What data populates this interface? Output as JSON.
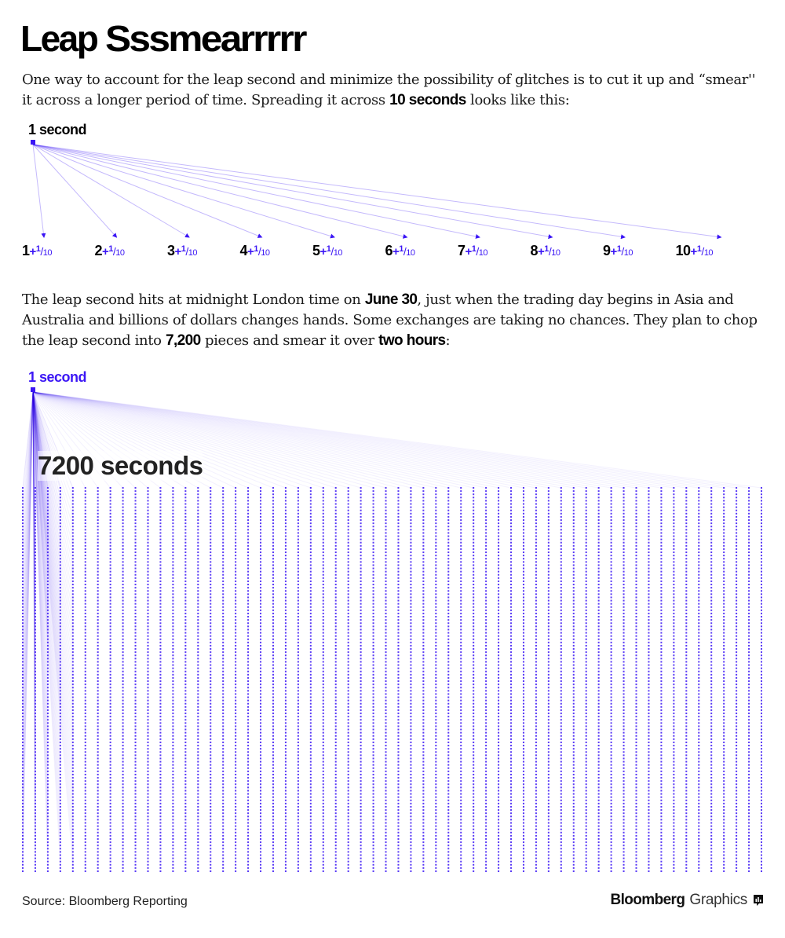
{
  "title": {
    "lead": "Leap ",
    "smear": "Sssmearrrrr"
  },
  "para1": {
    "t1": "One way to account for the leap second and minimize the possibility of glitches is to cut it up and “smear'' it across a longer period of time. Spreading it across ",
    "b1": "10 seconds",
    "t2": " looks like this:"
  },
  "diagram1": {
    "source_label": "1 second",
    "fraction_plus": "+",
    "fraction_num": "1",
    "fraction_slash": "/",
    "fraction_den": "10",
    "targets": [
      "1",
      "2",
      "3",
      "4",
      "5",
      "6",
      "7",
      "8",
      "9",
      "10"
    ]
  },
  "para2": {
    "t1": "The leap second hits at midnight London time on ",
    "b1": "June 30",
    "t2": ", just when the trading day begins in Asia and Australia and billions of dollars changes hands. Some exchanges are taking no chances. They plan to chop the leap second into ",
    "b2": "7,200",
    "t3": " pieces and smear it over ",
    "b3": "two hours",
    "t4": ":"
  },
  "diagram2": {
    "source_label": "1 second",
    "grid_label": "7200 seconds",
    "pieces": 7200
  },
  "colors": {
    "accent": "#3b16f5",
    "text": "#000000"
  },
  "footer": {
    "source": "Source: Bloomberg Reporting",
    "brand_bold": "Bloomberg",
    "brand_light": "Graphics",
    "brand_icon": "bloomberg-graphics-icon"
  }
}
